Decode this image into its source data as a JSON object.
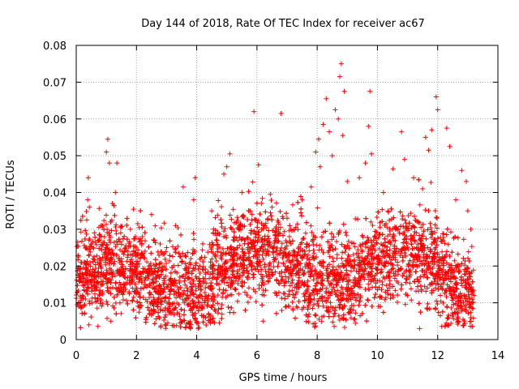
{
  "chart_data": {
    "type": "scatter",
    "title": "Day 144 of 2018, Rate Of TEC Index for receiver ac67",
    "xlabel": "GPS time / hours",
    "ylabel": "ROTI / TECUs",
    "xlim": [
      0,
      14
    ],
    "ylim": [
      0,
      0.08
    ],
    "x_ticks": [
      0,
      2,
      4,
      6,
      8,
      10,
      12,
      14
    ],
    "y_ticks": [
      0,
      0.01,
      0.02,
      0.03,
      0.04,
      0.05,
      0.06,
      0.07,
      0.08
    ],
    "x_tick_labels": [
      "0",
      "2",
      "4",
      "6",
      "8",
      "10",
      "12",
      "14"
    ],
    "y_tick_labels": [
      "0",
      "0.01",
      "0.02",
      "0.03",
      "0.04",
      "0.05",
      "0.06",
      "0.07",
      "0.08"
    ],
    "grid": true,
    "marker": "+",
    "color": "#ff0000",
    "data_x_range": [
      0,
      13.2
    ],
    "series": [
      {
        "name": "ROTI",
        "points": [
          [
            0.05,
            0.0265
          ],
          [
            0.08,
            0.009
          ],
          [
            0.12,
            0.018
          ],
          [
            0.2,
            0.012
          ],
          [
            0.3,
            0.021
          ],
          [
            0.35,
            0.0325
          ],
          [
            0.38,
            0.038
          ],
          [
            0.4,
            0.044
          ],
          [
            0.42,
            0.004
          ],
          [
            0.5,
            0.015
          ],
          [
            0.6,
            0.029
          ],
          [
            0.8,
            0.013
          ],
          [
            1.0,
            0.051
          ],
          [
            1.05,
            0.0545
          ],
          [
            1.1,
            0.048
          ],
          [
            1.15,
            0.005
          ],
          [
            1.2,
            0.037
          ],
          [
            1.3,
            0.04
          ],
          [
            1.35,
            0.048
          ],
          [
            1.4,
            0.022
          ],
          [
            1.6,
            0.017
          ],
          [
            1.8,
            0.03
          ],
          [
            2.0,
            0.014
          ],
          [
            2.2,
            0.028
          ],
          [
            2.5,
            0.034
          ],
          [
            2.7,
            0.01
          ],
          [
            3.0,
            0.025
          ],
          [
            3.3,
            0.031
          ],
          [
            3.55,
            0.0415
          ],
          [
            3.7,
            0.012
          ],
          [
            3.9,
            0.038
          ],
          [
            3.95,
            0.044
          ],
          [
            4.1,
            0.02
          ],
          [
            4.3,
            0.006
          ],
          [
            4.5,
            0.035
          ],
          [
            4.7,
            0.029
          ],
          [
            4.9,
            0.045
          ],
          [
            5.0,
            0.047
          ],
          [
            5.1,
            0.0505
          ],
          [
            5.3,
            0.016
          ],
          [
            5.5,
            0.04
          ],
          [
            5.7,
            0.022
          ],
          [
            5.9,
            0.062
          ],
          [
            6.05,
            0.0475
          ],
          [
            6.2,
            0.005
          ],
          [
            6.5,
            0.036
          ],
          [
            6.8,
            0.0615
          ],
          [
            7.0,
            0.033
          ],
          [
            7.2,
            0.008
          ],
          [
            7.5,
            0.038
          ],
          [
            7.8,
            0.0415
          ],
          [
            7.95,
            0.051
          ],
          [
            8.05,
            0.0545
          ],
          [
            8.1,
            0.047
          ],
          [
            8.2,
            0.0585
          ],
          [
            8.3,
            0.0655
          ],
          [
            8.4,
            0.0565
          ],
          [
            8.5,
            0.05
          ],
          [
            8.6,
            0.0625
          ],
          [
            8.7,
            0.06
          ],
          [
            8.75,
            0.0715
          ],
          [
            8.8,
            0.075
          ],
          [
            8.85,
            0.0555
          ],
          [
            8.9,
            0.0675
          ],
          [
            9.0,
            0.043
          ],
          [
            9.2,
            0.008
          ],
          [
            9.4,
            0.044
          ],
          [
            9.6,
            0.048
          ],
          [
            9.7,
            0.058
          ],
          [
            9.75,
            0.0675
          ],
          [
            9.8,
            0.0505
          ],
          [
            10.0,
            0.016
          ],
          [
            10.2,
            0.04
          ],
          [
            10.5,
            0.03
          ],
          [
            10.8,
            0.0565
          ],
          [
            10.9,
            0.049
          ],
          [
            11.0,
            0.012
          ],
          [
            11.2,
            0.044
          ],
          [
            11.4,
            0.003
          ],
          [
            11.5,
            0.041
          ],
          [
            11.6,
            0.055
          ],
          [
            11.7,
            0.0515
          ],
          [
            11.8,
            0.057
          ],
          [
            11.95,
            0.066
          ],
          [
            12.0,
            0.0625
          ],
          [
            12.1,
            0.022
          ],
          [
            12.3,
            0.0575
          ],
          [
            12.4,
            0.0525
          ],
          [
            12.6,
            0.038
          ],
          [
            12.8,
            0.046
          ],
          [
            12.95,
            0.043
          ],
          [
            13.0,
            0.035
          ],
          [
            13.1,
            0.03
          ],
          [
            13.2,
            0.012
          ]
        ]
      }
    ]
  }
}
